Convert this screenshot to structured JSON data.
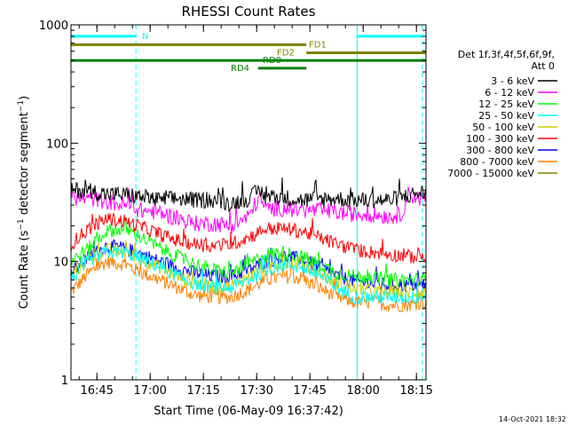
{
  "chart_data": {
    "type": "line",
    "title": "RHESSI Count Rates",
    "xlabel": "Start Time (06-May-09 16:37:42)",
    "ylabel_main": "Count Rate (s",
    "ylabel_sup1": "−1",
    "ylabel_mid": " detector segment",
    "ylabel_sup2": "−1",
    "ylabel_end": ")",
    "yscale": "log",
    "ylim": [
      1,
      1000
    ],
    "xlim_minutes": [
      0,
      100
    ],
    "x_ticks": [
      {
        "label": "16:45",
        "minute": 7.3
      },
      {
        "label": "17:00",
        "minute": 22.3
      },
      {
        "label": "17:15",
        "minute": 37.3
      },
      {
        "label": "17:30",
        "minute": 52.3
      },
      {
        "label": "17:45",
        "minute": 67.3
      },
      {
        "label": "18:00",
        "minute": 82.3
      },
      {
        "label": "18:15",
        "minute": 97.3
      }
    ],
    "y_ticks": [
      {
        "label": "1",
        "value": 1
      },
      {
        "label": "10",
        "value": 10
      },
      {
        "label": "100",
        "value": 100
      },
      {
        "label": "1000",
        "value": 1000
      }
    ],
    "legend": {
      "title1": "Det 1f,3f,4f,5f,6f,9f,",
      "title2": "Att 0",
      "entries": [
        {
          "label": "3 - 6 keV",
          "color": "#000000"
        },
        {
          "label": "6 - 12 keV",
          "color": "#ff00ff"
        },
        {
          "label": "12 - 25 keV",
          "color": "#00ff00"
        },
        {
          "label": "25 - 50 keV",
          "color": "#00ffff"
        },
        {
          "label": "50 - 100 keV",
          "color": "#cccc00"
        },
        {
          "label": "100 - 300 keV",
          "color": "#ff0000"
        },
        {
          "label": "300 - 800 keV",
          "color": "#0000ff"
        },
        {
          "label": "800 - 7000 keV",
          "color": "#ff8000"
        },
        {
          "label": "7000 - 15000 keV",
          "color": "#808000"
        }
      ]
    },
    "series": [
      {
        "name": "3 - 6 keV",
        "color": "#000000",
        "minutes": [
          0,
          5,
          10,
          15,
          20,
          25,
          30,
          35,
          40,
          45,
          50,
          53,
          55,
          60,
          65,
          70,
          75,
          80,
          85,
          90,
          93,
          95,
          98
        ],
        "values": [
          40,
          40,
          37,
          37,
          35,
          33,
          34,
          33,
          33,
          31,
          34,
          40,
          35,
          35,
          33,
          34,
          34,
          33,
          33,
          33,
          35,
          36,
          38
        ]
      },
      {
        "name": "6 - 12 keV",
        "color": "#ff00ff",
        "minutes": [
          0,
          5,
          10,
          15,
          20,
          25,
          30,
          35,
          40,
          45,
          50,
          53,
          55,
          60,
          65,
          70,
          75,
          80,
          85,
          90,
          93,
          95,
          98
        ],
        "values": [
          35,
          34,
          32,
          30,
          27,
          26,
          23,
          21,
          21,
          20,
          24,
          35,
          28,
          28,
          27,
          27,
          26,
          25,
          25,
          24,
          25,
          37,
          34
        ]
      },
      {
        "name": "12 - 25 keV",
        "color": "#00ff00",
        "minutes": [
          0,
          5,
          10,
          15,
          20,
          25,
          30,
          35,
          40,
          45,
          50,
          55,
          60,
          65,
          70,
          75,
          80,
          85,
          90,
          95,
          98
        ],
        "values": [
          10,
          13,
          18,
          19,
          16,
          13,
          11,
          9.5,
          8.5,
          8,
          9.5,
          11.5,
          12,
          11,
          9.5,
          8,
          7.5,
          7.3,
          7,
          7,
          7
        ]
      },
      {
        "name": "25 - 50 keV",
        "color": "#00ffff",
        "minutes": [
          0,
          5,
          10,
          15,
          20,
          25,
          30,
          35,
          40,
          45,
          50,
          55,
          60,
          65,
          70,
          75,
          80,
          85,
          90,
          95,
          98
        ],
        "values": [
          7,
          10,
          12,
          12,
          10.5,
          9,
          7.5,
          6.5,
          6,
          6,
          7,
          8.5,
          9.5,
          9,
          7.5,
          6,
          5,
          5,
          5,
          5,
          5
        ]
      },
      {
        "name": "50 - 100 keV",
        "color": "#cccc00",
        "minutes": [
          0,
          5,
          10,
          15,
          20,
          25,
          30,
          35,
          40,
          45,
          50,
          55,
          60,
          65,
          70,
          75,
          80,
          85,
          90,
          95,
          98
        ],
        "values": [
          7.5,
          10.5,
          12.5,
          12,
          10.5,
          9,
          7.5,
          6.5,
          6.2,
          6.2,
          7.5,
          9,
          10,
          9.5,
          8,
          6.5,
          5.8,
          5.6,
          5.5,
          5.5,
          5.5
        ]
      },
      {
        "name": "100 - 300 keV",
        "color": "#ff0000",
        "minutes": [
          0,
          5,
          10,
          15,
          20,
          25,
          30,
          35,
          40,
          45,
          50,
          55,
          60,
          65,
          70,
          75,
          80,
          85,
          90,
          95,
          98
        ],
        "values": [
          14,
          19,
          23,
          22,
          19.5,
          17,
          15,
          14,
          13.5,
          14,
          16,
          19,
          19,
          18,
          16,
          14,
          12.5,
          12,
          11.5,
          11,
          11
        ]
      },
      {
        "name": "300 - 800 keV",
        "color": "#0000ff",
        "minutes": [
          0,
          5,
          10,
          15,
          20,
          25,
          30,
          35,
          40,
          45,
          50,
          55,
          60,
          65,
          70,
          75,
          80,
          85,
          90,
          95,
          98
        ],
        "values": [
          8,
          11,
          13.5,
          13,
          11.5,
          10,
          8.8,
          8,
          7.5,
          7.5,
          8.5,
          10,
          11,
          10.5,
          9,
          7.5,
          6.8,
          6.5,
          6.3,
          6.3,
          6.4
        ]
      },
      {
        "name": "800 - 7000 keV",
        "color": "#ff8000",
        "minutes": [
          0,
          5,
          10,
          15,
          20,
          25,
          30,
          35,
          40,
          45,
          50,
          55,
          60,
          65,
          70,
          75,
          80,
          85,
          90,
          95,
          98
        ],
        "values": [
          5.5,
          8,
          10,
          9.5,
          8,
          7,
          6,
          5.2,
          5,
          5,
          5.8,
          7,
          7.5,
          7.2,
          6,
          5,
          4.5,
          4.5,
          4.3,
          4.3,
          4.5
        ]
      }
    ],
    "annotations": [
      {
        "label": "N",
        "color": "#00ffff",
        "y_value": 800,
        "from_minute": 0,
        "to_minute": 18.3,
        "label_minute": 20
      },
      {
        "label": "",
        "color": "#00ffff",
        "y_value": 800,
        "from_minute": 80.6,
        "to_minute": 99,
        "label_minute": null
      },
      {
        "label": "FD1",
        "color": "#808000",
        "y_value": 680,
        "from_minute": 0,
        "to_minute": 66.3,
        "label_minute": 67
      },
      {
        "label": "FD2",
        "color": "#808000",
        "y_value": 580,
        "from_minute": 66.3,
        "to_minute": 100,
        "label_minute": 58
      },
      {
        "label": "RD0",
        "color": "#008000",
        "y_value": 500,
        "from_minute": 0,
        "to_minute": 100,
        "label_minute": 54
      },
      {
        "label": "RD4",
        "color": "#008000",
        "y_value": 430,
        "from_minute": 52.7,
        "to_minute": 66.3,
        "label_minute": 45
      }
    ],
    "vlines": [
      {
        "minute": 0,
        "color": "#00ffff",
        "style": "solid"
      },
      {
        "minute": 18.3,
        "color": "#00ffff",
        "style": "dashed"
      },
      {
        "minute": 80.6,
        "color": "#00ffff",
        "style": "solid"
      },
      {
        "minute": 99.0,
        "color": "#00ffff",
        "style": "dashed"
      }
    ],
    "footer": "14-Oct-2021 18:32"
  }
}
